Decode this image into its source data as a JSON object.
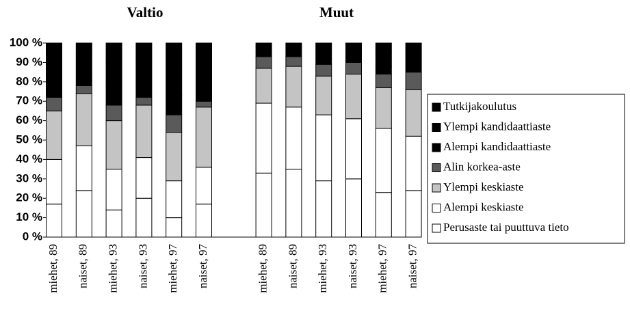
{
  "chart_data": {
    "type": "stacked_bar",
    "annotations": [
      "Valtio",
      "Muut"
    ],
    "categories": [
      "miehet, 89",
      "naiset, 89",
      "miehet, 93",
      "naiset, 93",
      "miehet, 97",
      "naiset, 97",
      null,
      "miehet, 89",
      "naiset, 89",
      "miehet, 93",
      "naiset, 93",
      "miehet, 97",
      "naiset, 97"
    ],
    "series": [
      {
        "name": "Perusaste tai puuttuva tieto",
        "color": "#ffffff",
        "values": [
          17,
          24,
          14,
          20,
          10,
          17,
          null,
          33,
          35,
          29,
          30,
          23,
          24
        ]
      },
      {
        "name": "Alempi keskiaste",
        "color": "#ffffff",
        "values": [
          23,
          23,
          21,
          21,
          19,
          19,
          null,
          36,
          32,
          34,
          31,
          33,
          28
        ]
      },
      {
        "name": "Ylempi keskiaste",
        "color": "#c4c4c4",
        "values": [
          25,
          27,
          25,
          27,
          25,
          31,
          null,
          18,
          21,
          20,
          23,
          21,
          24
        ]
      },
      {
        "name": "Alin korkea-aste",
        "color": "#5a5a5a",
        "values": [
          7,
          4,
          8,
          4,
          9,
          3,
          null,
          6,
          5,
          6,
          6,
          7,
          9
        ]
      },
      {
        "name": "Alempi kandidaattiaste",
        "color": "#000000",
        "values": [
          8,
          6,
          9,
          8,
          10,
          8,
          null,
          2,
          2,
          3,
          3,
          4,
          4
        ]
      },
      {
        "name": "Ylempi kandidaattiaste",
        "color": "#000000",
        "values": [
          12,
          10,
          13,
          12,
          15,
          14,
          null,
          3,
          3,
          5,
          4,
          7,
          7
        ]
      },
      {
        "name": "Tutkijakoulutus",
        "color": "#000000",
        "values": [
          8,
          6,
          10,
          8,
          12,
          8,
          null,
          2,
          2,
          3,
          3,
          5,
          4
        ]
      }
    ],
    "ylim": [
      0,
      100
    ],
    "yticks": [
      {
        "value": 0,
        "label": "0 %"
      },
      {
        "value": 10,
        "label": "10 %"
      },
      {
        "value": 20,
        "label": "20 %"
      },
      {
        "value": 30,
        "label": "30 %"
      },
      {
        "value": 40,
        "label": "40 %"
      },
      {
        "value": 50,
        "label": "50 %"
      },
      {
        "value": 60,
        "label": "60 %"
      },
      {
        "value": 70,
        "label": "70 %"
      },
      {
        "value": 80,
        "label": "80 %"
      },
      {
        "value": 90,
        "label": "90 %"
      },
      {
        "value": 100,
        "label": "100 %"
      }
    ],
    "grid": false
  }
}
